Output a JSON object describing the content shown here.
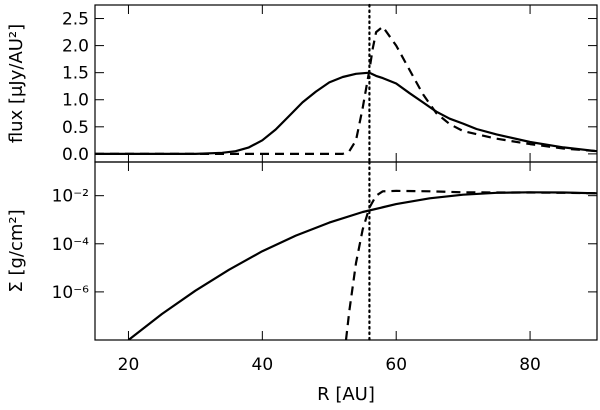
{
  "chart_data": [
    {
      "type": "line",
      "ylabel": "flux  [μJy/AU²]",
      "xlim": [
        15,
        90
      ],
      "ylim": [
        -0.15,
        2.75
      ],
      "y_ticks": [
        "0.0",
        "0.5",
        "1.0",
        "1.5",
        "2.0",
        "2.5"
      ],
      "y_tick_values": [
        0.0,
        0.5,
        1.0,
        1.5,
        2.0,
        2.5
      ],
      "vline": 56,
      "series": [
        {
          "style": "solid",
          "x": [
            15,
            30,
            34,
            36,
            38,
            40,
            42,
            44,
            46,
            48,
            50,
            52,
            54,
            56,
            57,
            58,
            60,
            62,
            64,
            66,
            68,
            70,
            72,
            75,
            80,
            85,
            90
          ],
          "y": [
            0.0,
            0.0,
            0.02,
            0.05,
            0.12,
            0.25,
            0.45,
            0.7,
            0.95,
            1.15,
            1.32,
            1.42,
            1.48,
            1.5,
            1.44,
            1.4,
            1.3,
            1.12,
            0.95,
            0.78,
            0.65,
            0.56,
            0.46,
            0.36,
            0.22,
            0.12,
            0.05
          ]
        },
        {
          "style": "dashed",
          "x": [
            15,
            52,
            53,
            54,
            55,
            56,
            56.5,
            57,
            58,
            60,
            62,
            64,
            66,
            68,
            70,
            75,
            80,
            85,
            90
          ],
          "y": [
            0.0,
            0.0,
            0.05,
            0.25,
            0.85,
            1.55,
            1.95,
            2.25,
            2.35,
            2.0,
            1.55,
            1.1,
            0.75,
            0.55,
            0.42,
            0.28,
            0.18,
            0.1,
            0.05
          ]
        }
      ]
    },
    {
      "type": "line",
      "xlabel": "R  [AU]",
      "ylabel": "Σ  [g/cm²]",
      "xlim": [
        15,
        90
      ],
      "ylim_log10": [
        -8.0,
        -0.6
      ],
      "y_scale": "log",
      "y_ticks": [
        "10⁻²",
        "10⁻⁴",
        "10⁻⁶"
      ],
      "y_tick_values": [
        -2,
        -4,
        -6
      ],
      "x_ticks": [
        "20",
        "40",
        "60",
        "80"
      ],
      "x_tick_values": [
        20,
        40,
        60,
        80
      ],
      "vline": 56,
      "series": [
        {
          "style": "solid",
          "x": [
            20,
            25,
            30,
            35,
            40,
            45,
            50,
            55,
            60,
            65,
            70,
            75,
            80,
            85,
            90
          ],
          "log10_y": [
            -8.0,
            -6.92,
            -5.95,
            -5.08,
            -4.31,
            -3.66,
            -3.12,
            -2.68,
            -2.35,
            -2.11,
            -1.96,
            -1.88,
            -1.86,
            -1.87,
            -1.9
          ]
        },
        {
          "style": "dashed",
          "x": [
            52.5,
            53,
            54,
            55,
            56,
            57,
            58,
            60,
            65,
            70,
            75,
            80,
            85,
            90
          ],
          "log10_y": [
            -8.0,
            -6.8,
            -4.8,
            -3.4,
            -2.5,
            -2.0,
            -1.82,
            -1.8,
            -1.82,
            -1.86,
            -1.87,
            -1.87,
            -1.88,
            -1.9
          ]
        }
      ]
    }
  ]
}
